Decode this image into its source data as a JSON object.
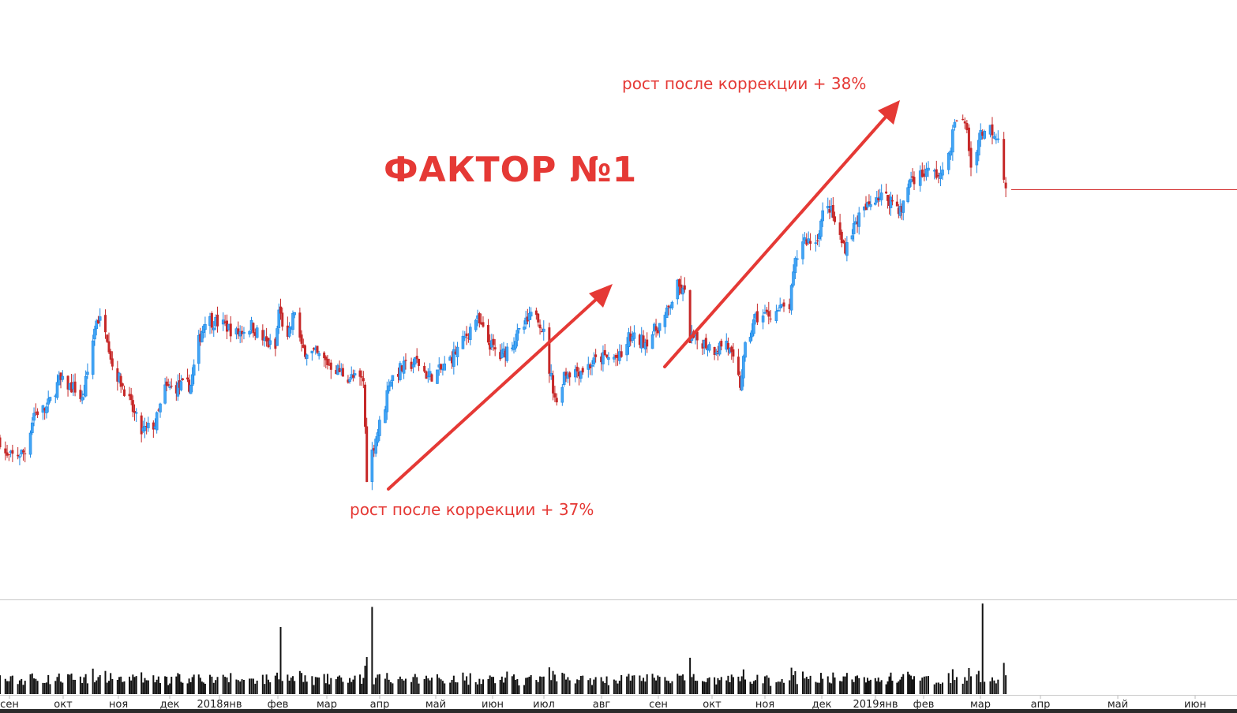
{
  "chart_data": {
    "type": "candlestick",
    "title": "ФАКТОР №1",
    "annotations": [
      {
        "text": "рост после коррекции + 37%",
        "from_date": "2018-03-30",
        "to_date": "2018-07-06"
      },
      {
        "text": "рост после коррекции + 38%",
        "from_date": "2018-10-23",
        "to_date": "2019-02-22"
      }
    ],
    "x_tick_labels": [
      "сен",
      "окт",
      "ноя",
      "дек",
      "2018янв",
      "фев",
      "мар",
      "апр",
      "май",
      "июн",
      "июл",
      "авг",
      "сен",
      "окт",
      "ноя",
      "дек",
      "2019янв",
      "фев",
      "мар",
      "апр",
      "май",
      "июн"
    ],
    "grid": false,
    "legend": "none",
    "ylim": [
      75,
      179
    ],
    "colors": {
      "up": "#42a5f5",
      "up_border": "#1e88e5",
      "down": "#c62828",
      "annotation": "#e53935",
      "volume": "#111111",
      "last_price_line": "#d32f2f"
    },
    "close_path": [
      [
        "2017-09-01",
        102.6
      ],
      [
        "2017-09-05",
        99.5
      ],
      [
        "2017-09-15",
        100.6
      ],
      [
        "2017-09-20",
        107.4
      ],
      [
        "2017-09-27",
        108.1
      ],
      [
        "2017-10-04",
        112.9
      ],
      [
        "2017-10-13",
        111.5
      ],
      [
        "2017-10-17",
        109.5
      ],
      [
        "2017-10-20",
        114.3
      ],
      [
        "2017-10-25",
        123.8
      ],
      [
        "2017-10-30",
        122.5
      ],
      [
        "2017-11-03",
        115.6
      ],
      [
        "2017-11-10",
        111.5
      ],
      [
        "2017-11-20",
        104.0
      ],
      [
        "2017-11-28",
        105.4
      ],
      [
        "2017-12-04",
        111.5
      ],
      [
        "2017-12-20",
        112.2
      ],
      [
        "2017-12-25",
        119.7
      ],
      [
        "2017-12-29",
        123.8
      ],
      [
        "2018-01-09",
        122.5
      ],
      [
        "2018-01-15",
        121.1
      ],
      [
        "2018-01-23",
        122.5
      ],
      [
        "2018-01-30",
        119.7
      ],
      [
        "2018-02-05",
        118.4
      ],
      [
        "2018-02-07",
        125.2
      ],
      [
        "2018-02-12",
        119.7
      ],
      [
        "2018-02-16",
        125.2
      ],
      [
        "2018-02-20",
        118.4
      ],
      [
        "2018-02-27",
        117.7
      ],
      [
        "2018-03-09",
        115.6
      ],
      [
        "2018-03-19",
        113.6
      ],
      [
        "2018-03-28",
        112.9
      ],
      [
        "2018-03-30",
        96.5
      ],
      [
        "2018-04-03",
        101.9
      ],
      [
        "2018-04-09",
        108.8
      ],
      [
        "2018-04-11",
        112.9
      ],
      [
        "2018-04-17",
        114.9
      ],
      [
        "2018-04-26",
        116.3
      ],
      [
        "2018-05-02",
        113.6
      ],
      [
        "2018-05-10",
        114.9
      ],
      [
        "2018-05-21",
        119.7
      ],
      [
        "2018-05-28",
        123.8
      ],
      [
        "2018-06-04",
        119.7
      ],
      [
        "2018-06-11",
        117.0
      ],
      [
        "2018-06-22",
        121.1
      ],
      [
        "2018-07-02",
        125.2
      ],
      [
        "2018-07-06",
        121.1
      ],
      [
        "2018-07-09",
        114.9
      ],
      [
        "2018-07-13",
        108.8
      ],
      [
        "2018-07-17",
        114.3
      ],
      [
        "2018-07-27",
        114.9
      ],
      [
        "2018-08-06",
        116.9
      ],
      [
        "2018-08-17",
        116.9
      ],
      [
        "2018-08-21",
        120.4
      ],
      [
        "2018-08-30",
        119.7
      ],
      [
        "2018-09-10",
        123.8
      ],
      [
        "2018-09-17",
        129.3
      ],
      [
        "2018-09-21",
        127.9
      ],
      [
        "2018-09-24",
        120.4
      ],
      [
        "2018-10-01",
        119.7
      ],
      [
        "2018-10-08",
        118.4
      ],
      [
        "2018-10-15",
        119.7
      ],
      [
        "2018-10-18",
        117.0
      ],
      [
        "2018-10-23",
        112.2
      ],
      [
        "2018-10-26",
        118.4
      ],
      [
        "2018-11-01",
        123.8
      ],
      [
        "2018-11-08",
        124.5
      ],
      [
        "2018-11-19",
        125.9
      ],
      [
        "2018-11-22",
        133.4
      ],
      [
        "2018-11-26",
        137.5
      ],
      [
        "2018-12-03",
        136.9
      ],
      [
        "2018-12-07",
        141.7
      ],
      [
        "2018-12-11",
        143.0
      ],
      [
        "2018-12-18",
        136.9
      ],
      [
        "2018-12-20",
        136.2
      ],
      [
        "2018-12-27",
        141.0
      ],
      [
        "2019-01-08",
        145.1
      ],
      [
        "2019-01-17",
        144.4
      ],
      [
        "2019-01-24",
        142.3
      ],
      [
        "2019-01-29",
        147.8
      ],
      [
        "2019-02-08",
        149.2
      ],
      [
        "2019-02-15",
        148.5
      ],
      [
        "2019-02-19",
        154.0
      ],
      [
        "2019-02-22",
        158.8
      ],
      [
        "2019-02-27",
        156.7
      ],
      [
        "2019-03-01",
        149.9
      ],
      [
        "2019-03-06",
        156.0
      ],
      [
        "2019-03-11",
        156.7
      ],
      [
        "2019-03-15",
        155.4
      ],
      [
        "2019-03-19",
        146.5
      ]
    ],
    "last_price": 146.5,
    "volume_spikes": [
      [
        "2018-02-08",
        1.0
      ],
      [
        "2018-04-02",
        1.3
      ],
      [
        "2019-03-07",
        1.35
      ]
    ]
  }
}
